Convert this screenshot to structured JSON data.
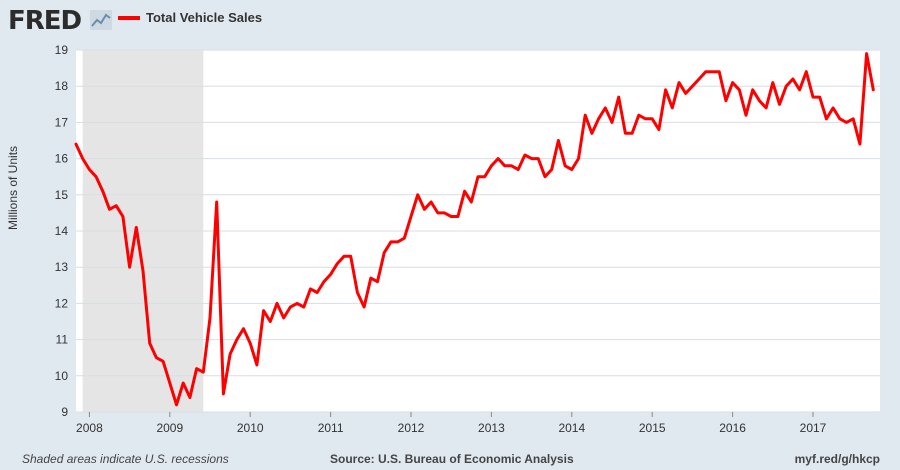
{
  "brand": {
    "logo": "FRED",
    "logo_icon": "chart-trend-icon"
  },
  "legend": {
    "label": "Total Vehicle Sales",
    "color": "#ff0000"
  },
  "footer": {
    "note": "Shaded areas indicate U.S. recessions",
    "source": "Source: U.S. Bureau of Economic Analysis",
    "link": "myf.red/g/hkcp"
  },
  "chart_data": {
    "type": "line",
    "title": "",
    "xlabel": "",
    "ylabel": "Millions of Units",
    "ylim": [
      9,
      19
    ],
    "yticks": [
      9,
      10,
      11,
      12,
      13,
      14,
      15,
      16,
      17,
      18,
      19
    ],
    "xlim": [
      "2007-11",
      "2017-11"
    ],
    "xticks": [
      "2008",
      "2009",
      "2010",
      "2011",
      "2012",
      "2013",
      "2014",
      "2015",
      "2016",
      "2017"
    ],
    "grid": true,
    "legend_position": "top-left",
    "recession": {
      "start": "2007-12",
      "end": "2009-06",
      "color": "#e5e5e5"
    },
    "series": [
      {
        "name": "Total Vehicle Sales",
        "color": "#ff0000",
        "x": [
          "2007-11",
          "2007-12",
          "2008-01",
          "2008-02",
          "2008-03",
          "2008-04",
          "2008-05",
          "2008-06",
          "2008-07",
          "2008-08",
          "2008-09",
          "2008-10",
          "2008-11",
          "2008-12",
          "2009-01",
          "2009-02",
          "2009-03",
          "2009-04",
          "2009-05",
          "2009-06",
          "2009-07",
          "2009-08",
          "2009-09",
          "2009-10",
          "2009-11",
          "2009-12",
          "2010-01",
          "2010-02",
          "2010-03",
          "2010-04",
          "2010-05",
          "2010-06",
          "2010-07",
          "2010-08",
          "2010-09",
          "2010-10",
          "2010-11",
          "2010-12",
          "2011-01",
          "2011-02",
          "2011-03",
          "2011-04",
          "2011-05",
          "2011-06",
          "2011-07",
          "2011-08",
          "2011-09",
          "2011-10",
          "2011-11",
          "2011-12",
          "2012-01",
          "2012-02",
          "2012-03",
          "2012-04",
          "2012-05",
          "2012-06",
          "2012-07",
          "2012-08",
          "2012-09",
          "2012-10",
          "2012-11",
          "2012-12",
          "2013-01",
          "2013-02",
          "2013-03",
          "2013-04",
          "2013-05",
          "2013-06",
          "2013-07",
          "2013-08",
          "2013-09",
          "2013-10",
          "2013-11",
          "2013-12",
          "2014-01",
          "2014-02",
          "2014-03",
          "2014-04",
          "2014-05",
          "2014-06",
          "2014-07",
          "2014-08",
          "2014-09",
          "2014-10",
          "2014-11",
          "2014-12",
          "2015-01",
          "2015-02",
          "2015-03",
          "2015-04",
          "2015-05",
          "2015-06",
          "2015-07",
          "2015-08",
          "2015-09",
          "2015-10",
          "2015-11",
          "2015-12",
          "2016-01",
          "2016-02",
          "2016-03",
          "2016-04",
          "2016-05",
          "2016-06",
          "2016-07",
          "2016-08",
          "2016-09",
          "2016-10",
          "2016-11",
          "2016-12",
          "2017-01",
          "2017-02",
          "2017-03",
          "2017-04",
          "2017-05",
          "2017-06",
          "2017-07",
          "2017-08",
          "2017-09",
          "2017-10"
        ],
        "values": [
          16.4,
          16.0,
          15.7,
          15.5,
          15.1,
          14.6,
          14.7,
          14.4,
          13.0,
          14.1,
          12.9,
          10.9,
          10.5,
          10.4,
          9.8,
          9.2,
          9.8,
          9.4,
          10.2,
          10.1,
          11.6,
          14.8,
          9.5,
          10.6,
          11.0,
          11.3,
          10.9,
          10.3,
          11.8,
          11.5,
          12.0,
          11.6,
          11.9,
          12.0,
          11.9,
          12.4,
          12.3,
          12.6,
          12.8,
          13.1,
          13.3,
          13.3,
          12.3,
          11.9,
          12.7,
          12.6,
          13.4,
          13.7,
          13.7,
          13.8,
          14.4,
          15.0,
          14.6,
          14.8,
          14.5,
          14.5,
          14.4,
          14.4,
          15.1,
          14.8,
          15.5,
          15.5,
          15.8,
          16.0,
          15.8,
          15.8,
          15.7,
          16.1,
          16.0,
          16.0,
          15.5,
          15.7,
          16.5,
          15.8,
          15.7,
          16.0,
          17.2,
          16.7,
          17.1,
          17.4,
          17.0,
          17.7,
          16.7,
          16.7,
          17.2,
          17.1,
          17.1,
          16.8,
          17.9,
          17.4,
          18.1,
          17.8,
          18.0,
          18.2,
          18.4,
          18.4,
          18.4,
          17.6,
          18.1,
          17.9,
          17.2,
          17.9,
          17.6,
          17.4,
          18.1,
          17.5,
          18.0,
          18.2,
          17.9,
          18.4,
          17.7,
          17.7,
          17.1,
          17.4,
          17.1,
          17.0,
          17.1,
          16.4,
          18.9,
          17.9
        ]
      }
    ]
  }
}
